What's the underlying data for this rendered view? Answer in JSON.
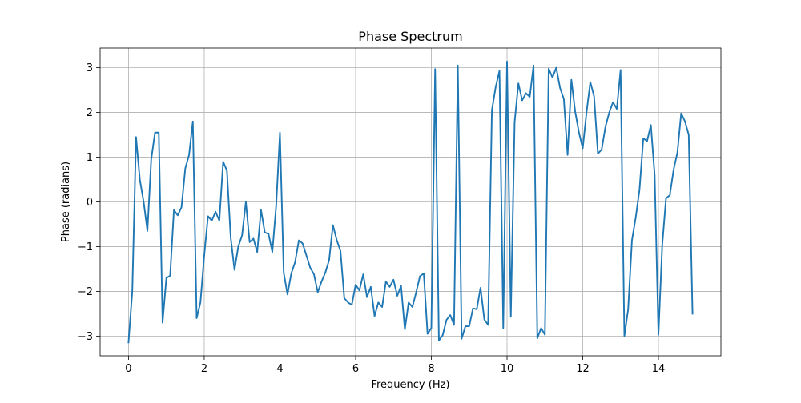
{
  "chart_data": {
    "type": "line",
    "title": "Phase Spectrum",
    "xlabel": "Frequency (Hz)",
    "ylabel": "Phase (radians)",
    "xlim": [
      -0.75,
      15.65
    ],
    "ylim": [
      -3.44,
      3.44
    ],
    "xticks": [
      0,
      2,
      4,
      6,
      8,
      10,
      12,
      14
    ],
    "yticks": [
      -3,
      -2,
      -1,
      0,
      1,
      2,
      3
    ],
    "xtick_labels": [
      "0",
      "2",
      "4",
      "6",
      "8",
      "10",
      "12",
      "14"
    ],
    "ytick_labels": [
      "−3",
      "−2",
      "−1",
      "0",
      "1",
      "2",
      "3"
    ],
    "grid": true,
    "legend": "none",
    "series": [
      {
        "color": "#1f77b4",
        "x": [
          0,
          0.1,
          0.2,
          0.3,
          0.4,
          0.5,
          0.6,
          0.7,
          0.8,
          0.9,
          1.0,
          1.1,
          1.2,
          1.3,
          1.4,
          1.5,
          1.6,
          1.7,
          1.8,
          1.9,
          2.0,
          2.1,
          2.2,
          2.3,
          2.4,
          2.5,
          2.6,
          2.7,
          2.8,
          2.9,
          3.0,
          3.1,
          3.2,
          3.3,
          3.4,
          3.5,
          3.6,
          3.7,
          3.8,
          3.9,
          4.0,
          4.1,
          4.2,
          4.3,
          4.4,
          4.5,
          4.6,
          4.7,
          4.8,
          4.9,
          5.0,
          5.1,
          5.2,
          5.3,
          5.4,
          5.5,
          5.6,
          5.7,
          5.8,
          5.9,
          6.0,
          6.1,
          6.2,
          6.3,
          6.4,
          6.5,
          6.6,
          6.7,
          6.8,
          6.9,
          7.0,
          7.1,
          7.2,
          7.3,
          7.4,
          7.5,
          7.6,
          7.7,
          7.8,
          7.9,
          8.0,
          8.1,
          8.2,
          8.3,
          8.4,
          8.5,
          8.6,
          8.7,
          8.8,
          8.9,
          9.0,
          9.1,
          9.2,
          9.3,
          9.4,
          9.5,
          9.6,
          9.7,
          9.8,
          9.9,
          10.0,
          10.1,
          10.2,
          10.3,
          10.4,
          10.5,
          10.6,
          10.7,
          10.8,
          10.9,
          11.0,
          11.1,
          11.2,
          11.3,
          11.4,
          11.5,
          11.6,
          11.7,
          11.8,
          11.9,
          12.0,
          12.1,
          12.2,
          12.3,
          12.4,
          12.5,
          12.6,
          12.7,
          12.8,
          12.9,
          13.0,
          13.1,
          13.2,
          13.3,
          13.4,
          13.5,
          13.6,
          13.7,
          13.8,
          13.9,
          14.0,
          14.1,
          14.2,
          14.3,
          14.4,
          14.5,
          14.6,
          14.7,
          14.8,
          14.9
        ],
        "y": [
          -3.14,
          -2.0,
          1.45,
          0.5,
          0.0,
          -0.65,
          0.95,
          1.55,
          1.55,
          -2.7,
          -1.7,
          -1.65,
          -0.18,
          -0.3,
          -0.12,
          0.75,
          1.05,
          1.8,
          -2.6,
          -2.25,
          -1.2,
          -0.32,
          -0.42,
          -0.22,
          -0.42,
          0.9,
          0.7,
          -0.8,
          -1.52,
          -1.0,
          -0.75,
          0.0,
          -0.9,
          -0.82,
          -1.12,
          -0.18,
          -0.68,
          -0.72,
          -1.12,
          -0.1,
          1.55,
          -1.58,
          -2.07,
          -1.6,
          -1.35,
          -0.86,
          -0.93,
          -1.2,
          -1.47,
          -1.62,
          -2.02,
          -1.78,
          -1.58,
          -1.3,
          -0.52,
          -0.85,
          -1.1,
          -2.15,
          -2.25,
          -2.3,
          -1.85,
          -1.98,
          -1.62,
          -2.13,
          -1.9,
          -2.55,
          -2.25,
          -2.35,
          -1.78,
          -1.9,
          -1.74,
          -2.1,
          -1.88,
          -2.85,
          -2.25,
          -2.35,
          -2.02,
          -1.66,
          -1.6,
          -2.95,
          -2.82,
          2.97,
          -3.1,
          -2.98,
          -2.64,
          -2.53,
          -2.75,
          3.05,
          -3.06,
          -2.78,
          -2.78,
          -2.38,
          -2.4,
          -1.92,
          -2.63,
          -2.75,
          2.05,
          2.57,
          2.93,
          -2.82,
          3.14,
          -2.57,
          1.78,
          2.65,
          2.27,
          2.43,
          2.35,
          3.05,
          -3.05,
          -2.82,
          -2.97,
          2.98,
          2.78,
          3.0,
          2.55,
          2.3,
          1.05,
          2.73,
          2.02,
          1.55,
          1.2,
          2.0,
          2.68,
          2.36,
          1.08,
          1.17,
          1.68,
          2.0,
          2.23,
          2.08,
          2.95,
          -3.0,
          -2.4,
          -0.86,
          -0.35,
          0.28,
          1.42,
          1.36,
          1.72,
          0.6,
          -2.97,
          -0.97,
          0.08,
          0.15,
          0.72,
          1.1,
          1.98,
          1.8,
          1.5,
          -2.5
        ]
      }
    ]
  }
}
